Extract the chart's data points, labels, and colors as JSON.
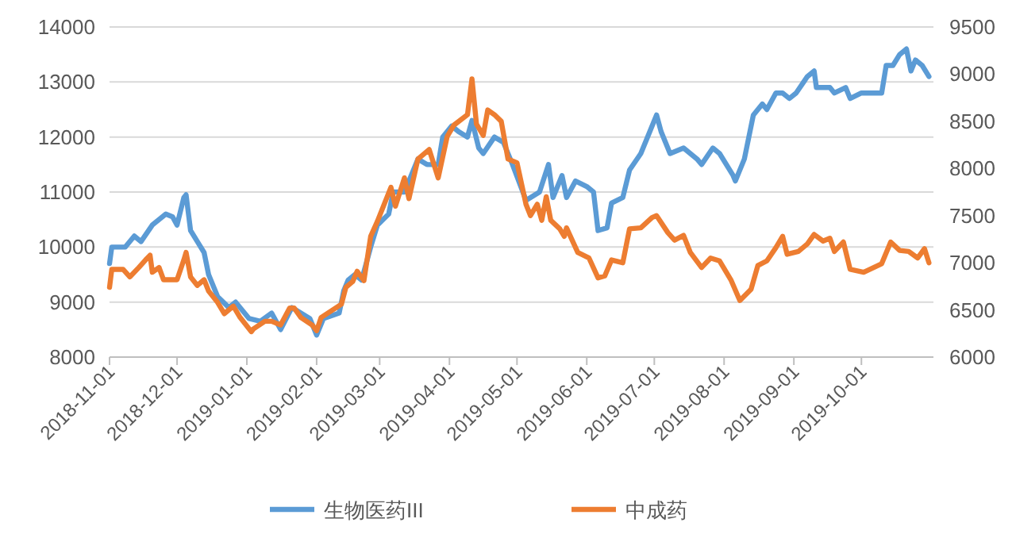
{
  "chart_data": {
    "type": "line",
    "xlim": [
      "2018-11-01",
      "2019-11-02"
    ],
    "xticks": [
      "2018-11-01",
      "2018-12-01",
      "2019-01-01",
      "2019-02-01",
      "2019-03-01",
      "2019-04-01",
      "2019-05-01",
      "2019-06-01",
      "2019-07-01",
      "2019-08-01",
      "2019-09-01",
      "2019-10-01"
    ],
    "ylim": [
      8000,
      14000
    ],
    "yticks": [
      8000,
      9000,
      10000,
      11000,
      12000,
      13000,
      14000
    ],
    "y2lim": [
      6000,
      9500
    ],
    "y2ticks": [
      6000,
      6500,
      7000,
      7500,
      8000,
      8500,
      9000,
      9500
    ],
    "grid": "y",
    "legend": "bottom",
    "line_style": "solid",
    "marker": "none",
    "series": [
      {
        "name": "生物医药III",
        "color": "#5b9bd5",
        "x": [
          "2018-11-01",
          "2018-11-02",
          "2018-11-08",
          "2018-11-12",
          "2018-11-15",
          "2018-11-20",
          "2018-11-26",
          "2018-11-29",
          "2018-12-01",
          "2018-12-04",
          "2018-12-05",
          "2018-12-07",
          "2018-12-10",
          "2018-12-13",
          "2018-12-15",
          "2018-12-19",
          "2018-12-24",
          "2018-12-27",
          "2019-01-02",
          "2019-01-07",
          "2019-01-12",
          "2019-01-16",
          "2019-01-21",
          "2019-01-25",
          "2019-01-29",
          "2019-02-01",
          "2019-02-04",
          "2019-02-11",
          "2019-02-13",
          "2019-02-15",
          "2019-02-18",
          "2019-02-21",
          "2019-02-25",
          "2019-02-28",
          "2019-03-05",
          "2019-03-07",
          "2019-03-12",
          "2019-03-18",
          "2019-03-22",
          "2019-03-27",
          "2019-03-29",
          "2019-04-02",
          "2019-04-05",
          "2019-04-09",
          "2019-04-11",
          "2019-04-14",
          "2019-04-16",
          "2019-04-21",
          "2019-04-25",
          "2019-04-29",
          "2019-05-05",
          "2019-05-11",
          "2019-05-15",
          "2019-05-17",
          "2019-05-21",
          "2019-05-23",
          "2019-05-27",
          "2019-06-01",
          "2019-06-04",
          "2019-06-06",
          "2019-06-10",
          "2019-06-12",
          "2019-06-17",
          "2019-06-20",
          "2019-06-25",
          "2019-06-28",
          "2019-07-02",
          "2019-07-04",
          "2019-07-08",
          "2019-07-14",
          "2019-07-20",
          "2019-07-22",
          "2019-07-27",
          "2019-07-30",
          "2019-08-05",
          "2019-08-06",
          "2019-08-10",
          "2019-08-14",
          "2019-08-18",
          "2019-08-20",
          "2019-08-24",
          "2019-08-27",
          "2019-08-30",
          "2019-09-02",
          "2019-09-07",
          "2019-09-10",
          "2019-09-11",
          "2019-09-17",
          "2019-09-19",
          "2019-09-24",
          "2019-09-26",
          "2019-10-01",
          "2019-10-10",
          "2019-10-12",
          "2019-10-15",
          "2019-10-18",
          "2019-10-21",
          "2019-10-23",
          "2019-10-25",
          "2019-10-28",
          "2019-10-31"
        ],
        "values": [
          9700,
          10000,
          10000,
          10200,
          10100,
          10400,
          10600,
          10550,
          10400,
          10900,
          10950,
          10300,
          10100,
          9900,
          9500,
          9100,
          8900,
          9000,
          8700,
          8650,
          8800,
          8500,
          8900,
          8800,
          8700,
          8400,
          8700,
          8800,
          9200,
          9400,
          9500,
          9400,
          10000,
          10400,
          10600,
          11000,
          11000,
          11600,
          11500,
          11500,
          12000,
          12200,
          12100,
          12000,
          12300,
          11800,
          11700,
          12000,
          11900,
          11500,
          10850,
          11000,
          11500,
          10900,
          11300,
          10900,
          11200,
          11100,
          11000,
          10300,
          10350,
          10800,
          10900,
          11400,
          11700,
          12000,
          12400,
          12100,
          11700,
          11800,
          11600,
          11500,
          11800,
          11700,
          11300,
          11200,
          11600,
          12400,
          12600,
          12500,
          12800,
          12800,
          12700,
          12800,
          13100,
          13200,
          12900,
          12900,
          12800,
          12900,
          12700,
          12800,
          12800,
          13300,
          13300,
          13500,
          13600,
          13200,
          13400,
          13300,
          13100
        ]
      },
      {
        "name": "中成药",
        "color": "#ed7d31",
        "axis": "y2",
        "x": [
          "2018-11-01",
          "2018-11-02",
          "2018-11-07",
          "2018-11-10",
          "2018-11-14",
          "2018-11-17",
          "2018-11-19",
          "2018-11-20",
          "2018-11-23",
          "2018-11-25",
          "2018-12-01",
          "2018-12-04",
          "2018-12-05",
          "2018-12-07",
          "2018-12-10",
          "2018-12-13",
          "2018-12-15",
          "2018-12-19",
          "2018-12-22",
          "2018-12-26",
          "2018-12-29",
          "2019-01-03",
          "2019-01-04",
          "2019-01-09",
          "2019-01-12",
          "2019-01-16",
          "2019-01-20",
          "2019-01-22",
          "2019-01-25",
          "2019-01-30",
          "2019-02-01",
          "2019-02-03",
          "2019-02-12",
          "2019-02-14",
          "2019-02-17",
          "2019-02-19",
          "2019-02-22",
          "2019-02-25",
          "2019-02-28",
          "2019-03-06",
          "2019-03-08",
          "2019-03-12",
          "2019-03-14",
          "2019-03-18",
          "2019-03-23",
          "2019-03-27",
          "2019-03-31",
          "2019-04-03",
          "2019-04-09",
          "2019-04-11",
          "2019-04-13",
          "2019-04-16",
          "2019-04-18",
          "2019-04-21",
          "2019-04-24",
          "2019-04-27",
          "2019-05-01",
          "2019-05-05",
          "2019-05-07",
          "2019-05-10",
          "2019-05-12",
          "2019-05-14",
          "2019-05-16",
          "2019-05-20",
          "2019-05-22",
          "2019-05-23",
          "2019-05-28",
          "2019-06-02",
          "2019-06-06",
          "2019-06-09",
          "2019-06-12",
          "2019-06-17",
          "2019-06-20",
          "2019-06-25",
          "2019-06-30",
          "2019-07-02",
          "2019-07-07",
          "2019-07-10",
          "2019-07-14",
          "2019-07-17",
          "2019-07-22",
          "2019-07-26",
          "2019-07-30",
          "2019-08-04",
          "2019-08-08",
          "2019-08-13",
          "2019-08-16",
          "2019-08-20",
          "2019-08-24",
          "2019-08-27",
          "2019-08-29",
          "2019-09-03",
          "2019-09-07",
          "2019-09-10",
          "2019-09-14",
          "2019-09-17",
          "2019-09-19",
          "2019-09-23",
          "2019-09-26",
          "2019-10-02",
          "2019-10-10",
          "2019-10-14",
          "2019-10-18",
          "2019-10-22",
          "2019-10-26",
          "2019-10-29",
          "2019-10-31"
        ],
        "values": [
          6740,
          6930,
          6930,
          6850,
          6950,
          7030,
          7080,
          6900,
          6950,
          6820,
          6820,
          7030,
          7110,
          6850,
          6760,
          6820,
          6700,
          6580,
          6460,
          6540,
          6420,
          6270,
          6300,
          6380,
          6380,
          6340,
          6520,
          6520,
          6420,
          6340,
          6280,
          6420,
          6560,
          6740,
          6800,
          6910,
          6810,
          7280,
          7440,
          7800,
          7600,
          7900,
          7680,
          8100,
          8200,
          7900,
          8340,
          8460,
          8570,
          8950,
          8470,
          8350,
          8620,
          8570,
          8500,
          8100,
          8060,
          7620,
          7500,
          7620,
          7450,
          7700,
          7450,
          7360,
          7280,
          7370,
          7110,
          7050,
          6840,
          6860,
          7030,
          7000,
          7360,
          7370,
          7480,
          7500,
          7320,
          7240,
          7290,
          7110,
          6950,
          7050,
          7020,
          6820,
          6600,
          6720,
          6970,
          7020,
          7160,
          7280,
          7090,
          7120,
          7200,
          7300,
          7230,
          7260,
          7120,
          7220,
          6930,
          6900,
          6990,
          7220,
          7130,
          7120,
          7050,
          7150,
          7000
        ]
      }
    ]
  }
}
